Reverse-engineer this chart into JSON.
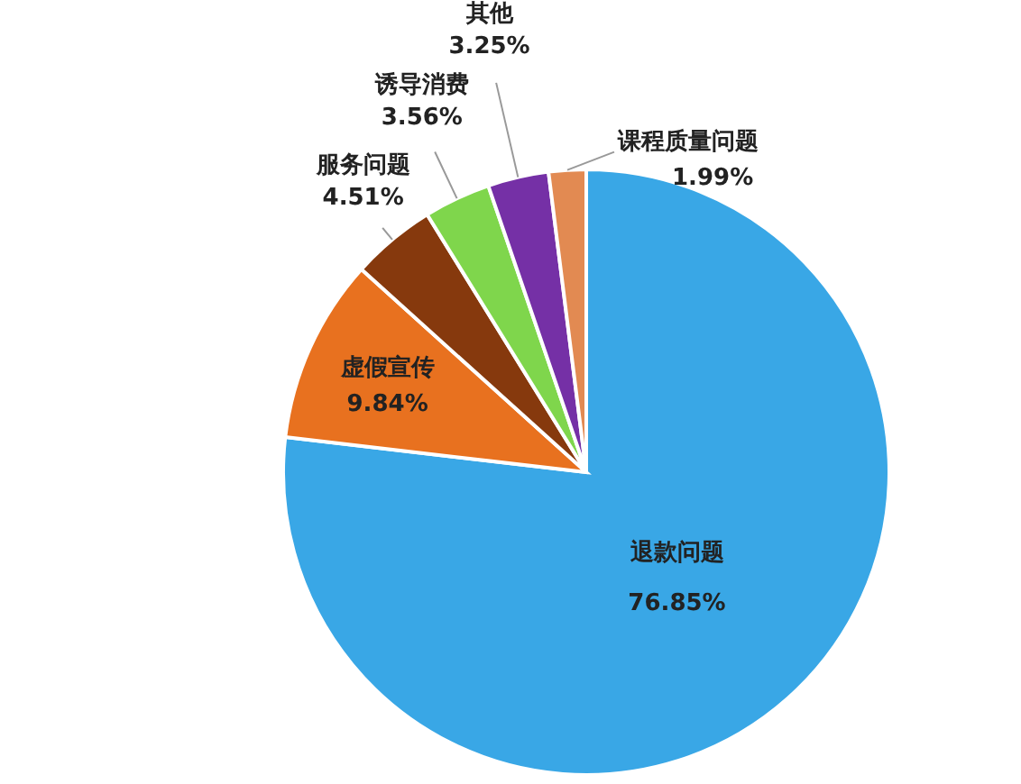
{
  "chart_data": {
    "type": "pie",
    "categories": [
      "退款问题",
      "虚假宣传",
      "服务问题",
      "诱导消费",
      "其他",
      "课程质量问题"
    ],
    "values": [
      76.85,
      9.84,
      4.51,
      3.56,
      3.25,
      1.99
    ],
    "colors": [
      "#39a7e6",
      "#e8711f",
      "#86390d",
      "#7fd64c",
      "#7530a6",
      "#e28a52"
    ],
    "value_labels": [
      "76.85%",
      "9.84%",
      "4.51%",
      "3.56%",
      "3.25%",
      "1.99%"
    ]
  }
}
